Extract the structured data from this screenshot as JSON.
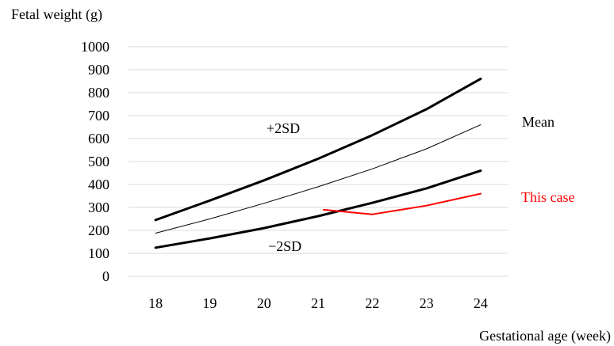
{
  "chart_data": {
    "type": "line",
    "ylabel": "Fetal weight (g)",
    "xlabel": "Gestational age (week)",
    "x": [
      18,
      19,
      20,
      21,
      22,
      23,
      24
    ],
    "xlim": [
      17.5,
      24.5
    ],
    "ylim": [
      0,
      1000
    ],
    "yticks": [
      0,
      100,
      200,
      300,
      400,
      500,
      600,
      700,
      800,
      900,
      1000
    ],
    "grid": true,
    "series": [
      {
        "name": "+2SD",
        "color": "#000000",
        "weight": "bold",
        "points": [
          [
            18,
            245
          ],
          [
            19,
            330
          ],
          [
            20,
            418
          ],
          [
            21,
            512
          ],
          [
            22,
            615
          ],
          [
            23,
            728
          ],
          [
            24,
            860
          ]
        ]
      },
      {
        "name": "Mean",
        "color": "#000000",
        "weight": "thin",
        "points": [
          [
            18,
            188
          ],
          [
            19,
            250
          ],
          [
            20,
            318
          ],
          [
            21,
            390
          ],
          [
            22,
            468
          ],
          [
            23,
            555
          ],
          [
            24,
            660
          ]
        ]
      },
      {
        "name": "−2SD",
        "color": "#000000",
        "weight": "bold",
        "points": [
          [
            18,
            125
          ],
          [
            19,
            165
          ],
          [
            20,
            210
          ],
          [
            21,
            262
          ],
          [
            22,
            320
          ],
          [
            23,
            383
          ],
          [
            24,
            460
          ]
        ]
      },
      {
        "name": "This case",
        "color": "#ff0000",
        "weight": "medium",
        "points": [
          [
            21.1,
            290
          ],
          [
            22,
            270
          ],
          [
            23,
            308
          ],
          [
            24,
            360
          ]
        ]
      }
    ]
  }
}
